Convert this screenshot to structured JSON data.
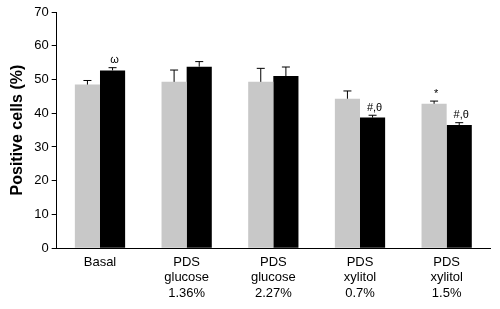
{
  "chart_data": {
    "type": "bar",
    "y_label": "Positive cells (%)",
    "categories": [
      [
        "Basal"
      ],
      [
        "PDS",
        "glucose",
        "1.36%"
      ],
      [
        "PDS",
        "glucose",
        "2.27%"
      ],
      [
        "PDS",
        "xylitol",
        "0.7%"
      ],
      [
        "PDS",
        "xylitol",
        "1.5%"
      ]
    ],
    "series": [
      {
        "color": "#c8c8c8",
        "values": [
          48.5,
          49.3,
          49.3,
          44.3,
          42.8
        ],
        "errors": [
          1.2,
          3.5,
          4.0,
          2.3,
          0.8
        ],
        "annotations": [
          null,
          null,
          null,
          null,
          "*"
        ]
      },
      {
        "color": "#000000",
        "values": [
          52.7,
          53.8,
          51.0,
          38.7,
          36.5
        ],
        "errors": [
          0.8,
          1.5,
          2.7,
          0.7,
          0.7
        ],
        "annotations": [
          "ω",
          null,
          null,
          "#,θ",
          "#,θ"
        ]
      }
    ],
    "ylim": [
      0,
      70
    ],
    "yticks": [
      0,
      10,
      20,
      30,
      40,
      50,
      60,
      70
    ],
    "grid": false
  }
}
